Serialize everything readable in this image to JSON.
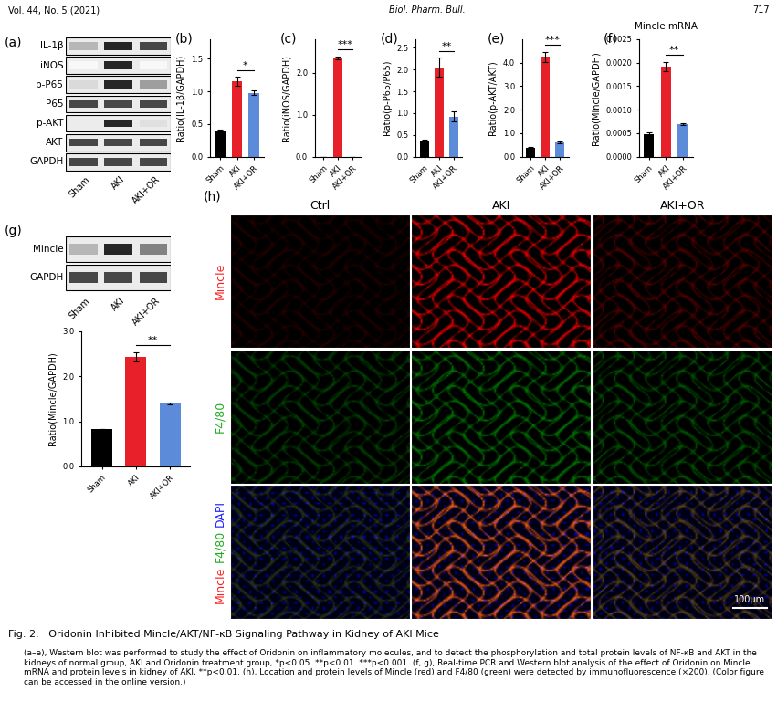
{
  "header": {
    "left": "Vol. 44, No. 5 (2021)",
    "center": "Biol. Pharm. Bull.",
    "right": "717"
  },
  "blots": [
    {
      "panel": "(a)",
      "rows": [
        "IL-1β",
        "iNOS",
        "p-P65",
        "P65",
        "p-AKT",
        "AKT",
        "GAPDH"
      ],
      "lanes": [
        "Sham",
        "AKI",
        "AKI+OR"
      ]
    },
    {
      "panel": "(g)",
      "rows": [
        "Mincle",
        "GAPDH"
      ],
      "lanes": [
        "Sham",
        "AKI",
        "AKI+OR"
      ]
    }
  ],
  "chart_data": [
    {
      "type": "bar",
      "panel": "(b)",
      "y_label": "Ratio(IL-1β/GAPDH)",
      "categories": [
        "Sham",
        "AKI",
        "AKI+OR"
      ],
      "values": [
        0.38,
        1.15,
        0.98
      ],
      "errors": [
        0.03,
        0.07,
        0.04
      ],
      "colors": [
        "#000000",
        "#e8202a",
        "#5b8bd9"
      ],
      "ylim": [
        0,
        1.8
      ],
      "yticks": [
        {
          "value": 0,
          "label": "0.0"
        },
        {
          "value": 0.5,
          "label": "0.5"
        },
        {
          "value": 1,
          "label": "1.0"
        },
        {
          "value": 1.5,
          "label": "1.5"
        }
      ],
      "annotations": [
        {
          "text": "*",
          "from": "AKI",
          "to": "AKI+OR"
        }
      ]
    },
    {
      "type": "bar",
      "panel": "(c)",
      "y_label": "Ratio(iNOS/GAPDH)",
      "categories": [
        "Sham",
        "AKI",
        "AKI+OR"
      ],
      "values": [
        0,
        2.35,
        0
      ],
      "errors": [
        0,
        0.03,
        0
      ],
      "colors": [
        "#000000",
        "#e8202a",
        "#5b8bd9"
      ],
      "ylim": [
        0,
        2.8
      ],
      "yticks": [
        {
          "value": 0,
          "label": "0.0"
        },
        {
          "value": 1,
          "label": "1.0"
        },
        {
          "value": 2,
          "label": "2.0"
        }
      ],
      "annotations": [
        {
          "text": "***",
          "from": "AKI",
          "to": "AKI+OR"
        }
      ]
    },
    {
      "type": "bar",
      "panel": "(d)",
      "y_label": "Ratio(p-P65/P65)",
      "categories": [
        "Sham",
        "AKI",
        "AKI+OR"
      ],
      "values": [
        0.35,
        2.05,
        0.92
      ],
      "errors": [
        0.05,
        0.22,
        0.12
      ],
      "colors": [
        "#000000",
        "#e8202a",
        "#5b8bd9"
      ],
      "ylim": [
        0,
        2.7
      ],
      "yticks": [
        {
          "value": 0,
          "label": "0.0"
        },
        {
          "value": 0.5,
          "label": "0.5"
        },
        {
          "value": 1,
          "label": "1.0"
        },
        {
          "value": 1.5,
          "label": "1.5"
        },
        {
          "value": 2,
          "label": "2.0"
        },
        {
          "value": 2.5,
          "label": "2.5"
        }
      ],
      "annotations": [
        {
          "text": "**",
          "from": "AKI",
          "to": "AKI+OR"
        }
      ]
    },
    {
      "type": "bar",
      "panel": "(e)",
      "y_label": "Ratio(p-AKT/AKT)",
      "categories": [
        "Sham",
        "AKI",
        "AKI+OR"
      ],
      "values": [
        0.38,
        4.25,
        0.6
      ],
      "errors": [
        0.02,
        0.22,
        0.03
      ],
      "colors": [
        "#000000",
        "#e8202a",
        "#5b8bd9"
      ],
      "ylim": [
        0,
        5
      ],
      "yticks": [
        {
          "value": 0,
          "label": "0.0"
        },
        {
          "value": 1,
          "label": "1.0"
        },
        {
          "value": 2,
          "label": "2.0"
        },
        {
          "value": 3,
          "label": "3.0"
        },
        {
          "value": 4,
          "label": "4.0"
        }
      ],
      "annotations": [
        {
          "text": "***",
          "from": "AKI",
          "to": "AKI+OR"
        }
      ]
    },
    {
      "type": "bar",
      "panel": "(f)",
      "title": "Mincle mRNA",
      "y_label": "Ratio(Mincle/GAPDH)",
      "categories": [
        "Sham",
        "AKI",
        "AKI+OR"
      ],
      "values": [
        0.00047,
        0.00192,
        0.0007
      ],
      "errors": [
        5e-05,
        0.0001,
        2e-05
      ],
      "colors": [
        "#000000",
        "#e8202a",
        "#5b8bd9"
      ],
      "ylim": [
        0,
        0.0025
      ],
      "yticks": [
        {
          "value": 0,
          "label": "0.0000"
        },
        {
          "value": 0.0005,
          "label": "0.0005"
        },
        {
          "value": 0.001,
          "label": "0.0010"
        },
        {
          "value": 0.0015,
          "label": "0.0015"
        },
        {
          "value": 0.002,
          "label": "0.0020"
        },
        {
          "value": 0.0025,
          "label": "0.0025"
        }
      ],
      "annotations": [
        {
          "text": "**",
          "from": "AKI",
          "to": "AKI+OR"
        }
      ]
    },
    {
      "type": "bar",
      "panel": "",
      "y_label": "Ratio(Mincle/GAPDH)",
      "categories": [
        "Sham",
        "AKI",
        "AKI+OR"
      ],
      "values": [
        0.82,
        2.42,
        1.4
      ],
      "errors": [
        0,
        0.1,
        0.02
      ],
      "colors": [
        "#000000",
        "#e8202a",
        "#5b8bd9"
      ],
      "ylim": [
        0,
        3
      ],
      "yticks": [
        {
          "value": 0,
          "label": "0.0"
        },
        {
          "value": 1,
          "label": "1.0"
        },
        {
          "value": 2,
          "label": "2.0"
        },
        {
          "value": 3,
          "label": "3.0"
        }
      ],
      "annotations": [
        {
          "text": "**",
          "from": "AKI",
          "to": "AKI+OR"
        }
      ]
    }
  ],
  "immunofluorescence": {
    "panel": "(h)",
    "columns": [
      "Ctrl",
      "AKI",
      "AKI+OR"
    ],
    "rows": [
      [
        {
          "text": "Mincle",
          "color": "#ff2020"
        }
      ],
      [
        {
          "text": "F4/80",
          "color": "#22aa22"
        }
      ],
      [
        {
          "text": "Mincle",
          "color": "#ff2020"
        },
        {
          "text": "F4/80",
          "color": "#22aa22"
        },
        {
          "text": "DAPI",
          "color": "#2020ff"
        }
      ]
    ],
    "scale_bar": "100μm"
  },
  "caption": {
    "title": "Fig. 2.   Oridonin Inhibited Mincle/AKT/NF-κB Signaling Pathway in Kidney of AKI Mice",
    "text": "(a–e), Western blot was performed to study the effect of Oridonin on inflammatory molecules, and to detect the phosphorylation and total protein levels of NF-κB and AKT in the kidneys of normal group, AKI and Oridonin treatment group, *p<0.05. **p<0.01. ***p<0.001. (f, g), Real-time PCR and Western blot analysis of the effect of Oridonin on Mincle mRNA and protein levels in kidney of AKI, **p<0.01. (h), Location and protein levels of Mincle (red) and F4/80 (green) were detected by immunofluorescence (×200). (Color figure can be accessed in the online version.)"
  }
}
